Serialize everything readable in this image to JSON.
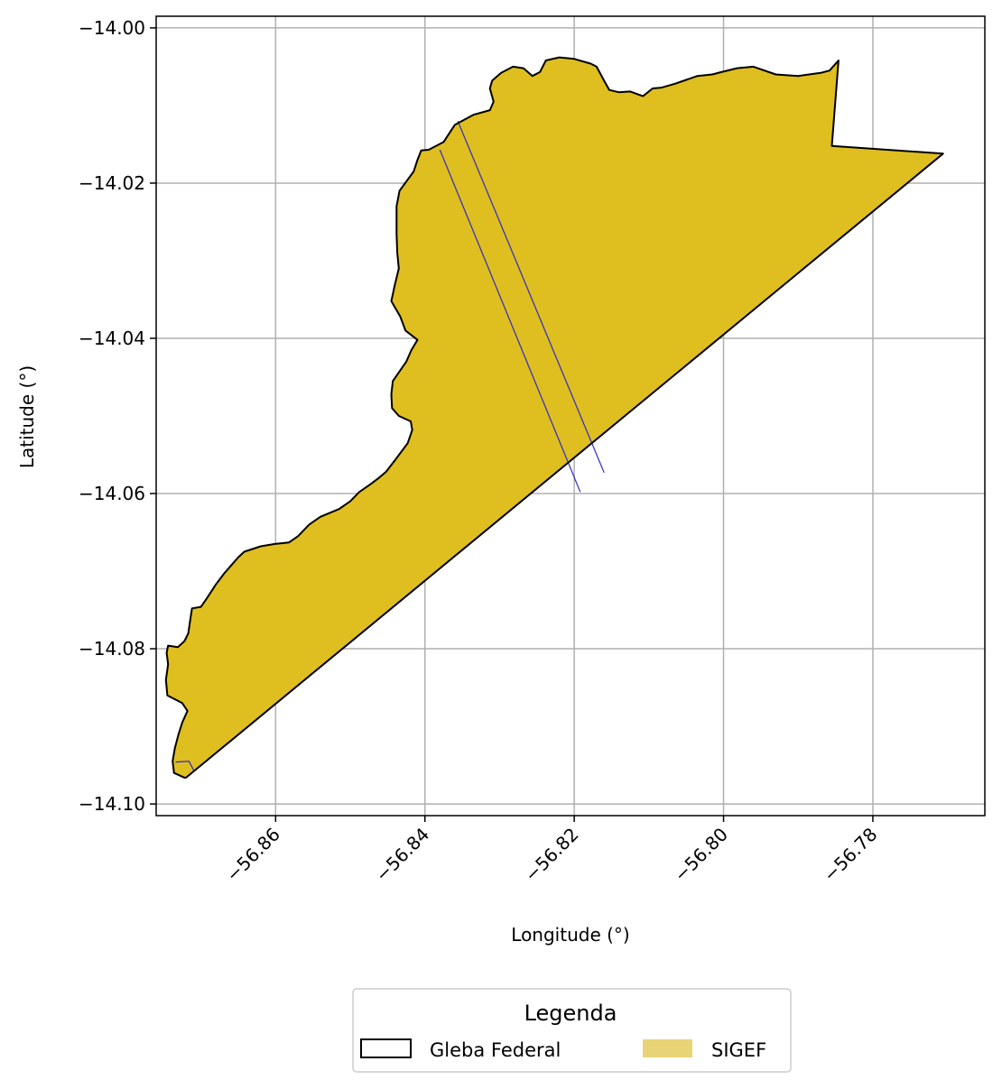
{
  "chart_data": {
    "type": "map",
    "xlabel": "Longitude (°)",
    "ylabel": "Latitude (°)",
    "xlim": [
      -56.876,
      -56.765
    ],
    "ylim": [
      -14.1015,
      -13.9985
    ],
    "grid": true,
    "xticks": [
      -56.86,
      -56.84,
      -56.82,
      -56.8,
      -56.78
    ],
    "yticks": [
      -14.0,
      -14.02,
      -14.04,
      -14.06,
      -14.08,
      -14.1
    ],
    "xtick_labels": [
      "−56.86",
      "−56.84",
      "−56.82",
      "−56.80",
      "−56.78"
    ],
    "ytick_labels": [
      "−14.00",
      "−14.02",
      "−14.04",
      "−14.06",
      "−14.08",
      "−14.10"
    ],
    "legend": {
      "title": "Legenda",
      "placement": "bottom-center",
      "entries": [
        {
          "label": "Gleba Federal",
          "style": "outline"
        },
        {
          "label": "SIGEF",
          "style": "fill"
        }
      ]
    },
    "colors": {
      "sigef_fill": "#dfbe20",
      "sigef_legend_fill": "#e8d477",
      "gleba_outline": "#000000",
      "parcel_lines": "#2b2bc8",
      "grid": "#b0b0b0"
    },
    "gleba_polygon": [
      [
        -56.8722,
        -14.0966
      ],
      [
        -56.8736,
        -14.096
      ],
      [
        -56.8738,
        -14.0945
      ],
      [
        -56.8735,
        -14.0928
      ],
      [
        -56.873,
        -14.091
      ],
      [
        -56.8725,
        -14.0895
      ],
      [
        -56.8718,
        -14.088
      ],
      [
        -56.8725,
        -14.087
      ],
      [
        -56.8745,
        -14.086
      ],
      [
        -56.8747,
        -14.084
      ],
      [
        -56.8744,
        -14.082
      ],
      [
        -56.8746,
        -14.0805
      ],
      [
        -56.8744,
        -14.0796
      ],
      [
        -56.8731,
        -14.0798
      ],
      [
        -56.8722,
        -14.079
      ],
      [
        -56.8717,
        -14.078
      ],
      [
        -56.8715,
        -14.0767
      ],
      [
        -56.8712,
        -14.0748
      ],
      [
        -56.87,
        -14.0746
      ],
      [
        -56.8692,
        -14.0735
      ],
      [
        -56.868,
        -14.0717
      ],
      [
        -56.8669,
        -14.0703
      ],
      [
        -56.865,
        -14.0682
      ],
      [
        -56.8642,
        -14.0675
      ],
      [
        -56.862,
        -14.0668
      ],
      [
        -56.8601,
        -14.0665
      ],
      [
        -56.8582,
        -14.0663
      ],
      [
        -56.857,
        -14.0655
      ],
      [
        -56.8555,
        -14.064
      ],
      [
        -56.854,
        -14.063
      ],
      [
        -56.8515,
        -14.062
      ],
      [
        -56.85,
        -14.061
      ],
      [
        -56.8488,
        -14.0598
      ],
      [
        -56.8473,
        -14.0588
      ],
      [
        -56.8462,
        -14.058
      ],
      [
        -56.8452,
        -14.0572
      ],
      [
        -56.844,
        -14.0557
      ],
      [
        -56.8423,
        -14.0535
      ],
      [
        -56.8417,
        -14.0518
      ],
      [
        -56.8419,
        -14.0507
      ],
      [
        -56.8435,
        -14.05
      ],
      [
        -56.8444,
        -14.049
      ],
      [
        -56.8445,
        -14.0472
      ],
      [
        -56.8443,
        -14.0455
      ],
      [
        -56.8425,
        -14.043
      ],
      [
        -56.8418,
        -14.0415
      ],
      [
        -56.841,
        -14.0402
      ],
      [
        -56.8426,
        -14.039
      ],
      [
        -56.8433,
        -14.0372
      ],
      [
        -56.8445,
        -14.0352
      ],
      [
        -56.844,
        -14.033
      ],
      [
        -56.8435,
        -14.031
      ],
      [
        -56.8437,
        -14.029
      ],
      [
        -56.8438,
        -14.0265
      ],
      [
        -56.8438,
        -14.023
      ],
      [
        -56.8434,
        -14.021
      ],
      [
        -56.8425,
        -14.0198
      ],
      [
        -56.8415,
        -14.0185
      ],
      [
        -56.841,
        -14.017
      ],
      [
        -56.8405,
        -14.0158
      ],
      [
        -56.8395,
        -14.0157
      ],
      [
        -56.8375,
        -14.0147
      ],
      [
        -56.836,
        -14.0125
      ],
      [
        -56.8335,
        -14.0112
      ],
      [
        -56.8313,
        -14.0106
      ],
      [
        -56.8308,
        -14.0095
      ],
      [
        -56.8313,
        -14.0078
      ],
      [
        -56.831,
        -14.0068
      ],
      [
        -56.8298,
        -14.0058
      ],
      [
        -56.8282,
        -14.005
      ],
      [
        -56.8268,
        -14.0052
      ],
      [
        -56.8256,
        -14.0062
      ],
      [
        -56.8246,
        -14.0057
      ],
      [
        -56.8238,
        -14.0042
      ],
      [
        -56.822,
        -14.0038
      ],
      [
        -56.82,
        -14.004
      ],
      [
        -56.8178,
        -14.0046
      ],
      [
        -56.817,
        -14.005
      ],
      [
        -56.816,
        -14.0068
      ],
      [
        -56.8153,
        -14.008
      ],
      [
        -56.814,
        -14.0083
      ],
      [
        -56.8125,
        -14.0082
      ],
      [
        -56.8108,
        -14.0088
      ],
      [
        -56.8095,
        -14.0078
      ],
      [
        -56.8083,
        -14.0077
      ],
      [
        -56.8065,
        -14.0072
      ],
      [
        -56.805,
        -14.0067
      ],
      [
        -56.8035,
        -14.0062
      ],
      [
        -56.8015,
        -14.006
      ],
      [
        -56.8003,
        -14.0057
      ],
      [
        -56.7982,
        -14.0052
      ],
      [
        -56.796,
        -14.005
      ],
      [
        -56.793,
        -14.006
      ],
      [
        -56.79,
        -14.0062
      ],
      [
        -56.787,
        -14.0058
      ],
      [
        -56.7858,
        -14.0055
      ],
      [
        -56.7846,
        -14.0042
      ],
      [
        -56.7855,
        -14.0152
      ],
      [
        -56.7706,
        -14.0162
      ],
      [
        -56.872,
        -14.0966
      ]
    ],
    "parcel_lines": [
      [
        [
          -56.838,
          -14.0157
        ],
        [
          -56.8192,
          -14.0598
        ]
      ],
      [
        [
          -56.8356,
          -14.012
        ],
        [
          -56.816,
          -14.0573
        ]
      ],
      [
        [
          -56.8734,
          -14.0946
        ],
        [
          -56.8716,
          -14.0945
        ],
        [
          -56.8709,
          -14.0958
        ]
      ]
    ]
  }
}
